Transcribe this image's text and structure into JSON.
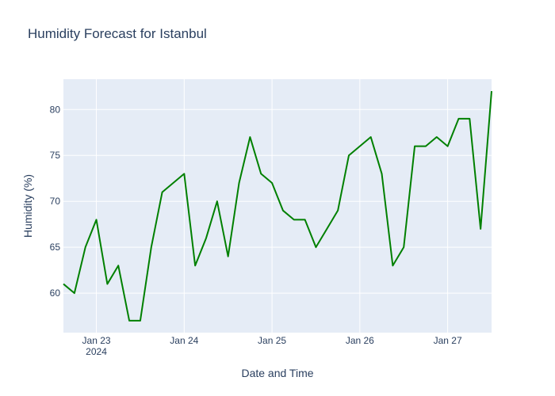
{
  "chart_data": {
    "type": "line",
    "title": "Humidity Forecast for Istanbul",
    "xlabel": "Date and Time",
    "ylabel": "Humidity (%)",
    "x_tick_labels": [
      "Jan 23",
      "Jan 24",
      "Jan 25",
      "Jan 26",
      "Jan 27"
    ],
    "x_tick_year": "2024",
    "y_ticks": [
      60,
      65,
      70,
      75,
      80
    ],
    "ylim": [
      55.7,
      83.3
    ],
    "xlim": [
      "2024-01-22 15:00",
      "2024-01-27 12:00"
    ],
    "grid": true,
    "series": [
      {
        "color": "#008000",
        "x": [
          "2024-01-22 15:00",
          "2024-01-22 18:00",
          "2024-01-22 21:00",
          "2024-01-23 00:00",
          "2024-01-23 03:00",
          "2024-01-23 06:00",
          "2024-01-23 09:00",
          "2024-01-23 12:00",
          "2024-01-23 15:00",
          "2024-01-23 18:00",
          "2024-01-23 21:00",
          "2024-01-24 00:00",
          "2024-01-24 03:00",
          "2024-01-24 06:00",
          "2024-01-24 09:00",
          "2024-01-24 12:00",
          "2024-01-24 15:00",
          "2024-01-24 18:00",
          "2024-01-24 21:00",
          "2024-01-25 00:00",
          "2024-01-25 03:00",
          "2024-01-25 06:00",
          "2024-01-25 09:00",
          "2024-01-25 12:00",
          "2024-01-25 15:00",
          "2024-01-25 18:00",
          "2024-01-25 21:00",
          "2024-01-26 00:00",
          "2024-01-26 03:00",
          "2024-01-26 06:00",
          "2024-01-26 09:00",
          "2024-01-26 12:00",
          "2024-01-26 15:00",
          "2024-01-26 18:00",
          "2024-01-26 21:00",
          "2024-01-27 00:00",
          "2024-01-27 03:00",
          "2024-01-27 06:00",
          "2024-01-27 09:00",
          "2024-01-27 12:00"
        ],
        "values": [
          61,
          60,
          65,
          68,
          61,
          63,
          57,
          57,
          65,
          71,
          72,
          73,
          63,
          66,
          70,
          64,
          72,
          77,
          73,
          72,
          69,
          68,
          68,
          65,
          67,
          69,
          75,
          76,
          77,
          73,
          63,
          65,
          76,
          76,
          77,
          76,
          79,
          79,
          67,
          82
        ]
      }
    ]
  }
}
